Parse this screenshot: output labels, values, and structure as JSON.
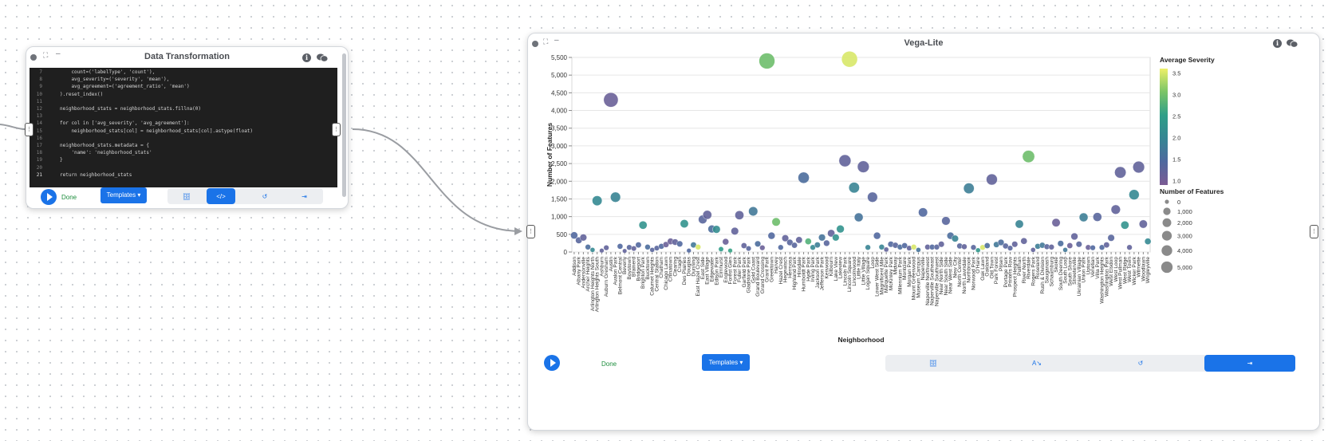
{
  "node1": {
    "title": "Data Transformation",
    "code_lines": [
      {
        "n": "7",
        "text": "    count=('labelType', 'count'),"
      },
      {
        "n": "8",
        "text": "    avg_severity=('severity', 'mean'),"
      },
      {
        "n": "9",
        "text": "    avg_agreement=('agreement_ratio', 'mean')"
      },
      {
        "n": "10",
        "text": ").reset_index()"
      },
      {
        "n": "11",
        "text": ""
      },
      {
        "n": "12",
        "text": "neighborhood_stats = neighborhood_stats.fillna(0)"
      },
      {
        "n": "13",
        "text": ""
      },
      {
        "n": "14",
        "text": "for col in ['avg_severity', 'avg_agreement']:"
      },
      {
        "n": "15",
        "text": "    neighborhood_stats[col] = neighborhood_stats[col].astype(float)"
      },
      {
        "n": "16",
        "text": ""
      },
      {
        "n": "17",
        "text": "neighborhood_stats.metadata = {"
      },
      {
        "n": "18",
        "text": "    'name': 'neighborhood_stats'"
      },
      {
        "n": "19",
        "text": "}"
      },
      {
        "n": "20",
        "text": ""
      },
      {
        "n": "21",
        "text": "return neighborhood_stats"
      }
    ],
    "done_label": "Done",
    "templates_label": "Templates ▾",
    "active_tool": "code"
  },
  "node2": {
    "title": "Vega-Lite",
    "done_label": "Done",
    "templates_label": "Templates ▾",
    "active_tool": "export"
  },
  "icons": {
    "info_glyph": "i",
    "handle_glyph": "⋮",
    "db_glyph": "🗄",
    "code_glyph": "</>",
    "ab_glyph": "A↘",
    "undo_glyph": "↺",
    "export_glyph": "⇥"
  },
  "colors": {
    "accent": "#1a73e8",
    "done": "#1e8e3e",
    "viridis_low": "#7b5b94",
    "viridis_high": "#eef069"
  },
  "chart_data": {
    "type": "scatter",
    "xlabel": "Neighborhood",
    "ylabel": "Number of Features",
    "ylim": [
      0,
      5500
    ],
    "yticks": [
      0,
      500,
      1000,
      1500,
      2000,
      2500,
      3000,
      3500,
      4000,
      4500,
      5000,
      5500
    ],
    "grid": true,
    "legend_placement": "right",
    "color_legend": {
      "title": "Average Severity",
      "ticks": [
        1.0,
        1.5,
        2.0,
        2.5,
        3.0,
        3.5
      ]
    },
    "size_legend": {
      "title": "Number of Features",
      "ticks": [
        0,
        1000,
        2000,
        3000,
        4000,
        5000
      ]
    },
    "categories": [
      "Addison",
      "Albany Park",
      "Andersonville",
      "Archer Heights",
      "Arlington Heights North",
      "Arlington Heights South",
      "Ashburn",
      "Auburn Gresham",
      "Austin",
      "Avalon Park",
      "Belmont Central",
      "Beverly",
      "Boystown",
      "Brainerd",
      "Bridgeport",
      "Brighton Park",
      "Bucktown",
      "Calumet Heights",
      "Central Station",
      "Chatham",
      "Chicago Lawn",
      "Chinatown",
      "Clearing",
      "Cragin",
      "Des Plaines",
      "Douglas",
      "Dunning",
      "East Hazel Crest",
      "East Side",
      "East Village",
      "Edgewater",
      "Edison Park",
      "Elmhurst",
      "Englewood",
      "Forest Glen",
      "Forest Park",
      "Fuller Park",
      "Garfield Park",
      "Gladstone Park",
      "Gold Coast",
      "Grand Boulevard",
      "Grand Crossing",
      "Grant Park",
      "Greektown",
      "Harvey",
      "Hazel Crest",
      "Hegewisch",
      "Hermosa",
      "Highland Park",
      "Hinsdale",
      "Humboldt Park",
      "Hyde Park",
      "Irving Park",
      "Jackson Park",
      "Jefferson Park",
      "Kenwood",
      "Kilbourn",
      "Lake View",
      "Lakeview",
      "Lincoln Park",
      "Lincoln Square",
      "Lincolnwood",
      "Little Italy",
      "Little Village",
      "Logan Square",
      "Loop",
      "Lower West Side",
      "Magnificent Mile",
      "Marquette Park",
      "McKinley Park",
      "Midway",
      "Millennium Park",
      "Montclare",
      "Morgan Park",
      "Mount Greenwood",
      "Museum Campus",
      "Naperville",
      "Naperville Northwest",
      "Naperville Southeast",
      "Naperville Southwest",
      "Near North Side",
      "Near South Side",
      "Near West Side",
      "New City",
      "North Center",
      "North Lawndale",
      "Northbrook",
      "Norwood Park",
      "O'Hare",
      "Oak Lawn",
      "Oakland",
      "Old Town",
      "Park Forest",
      "Pilsen",
      "Portage Park",
      "Printers Row",
      "Prospect Heights",
      "Pullman",
      "River North",
      "Riverdale",
      "Rogers Park",
      "Roseland",
      "Rush & Division",
      "Sauganash",
      "Schaumburg",
      "Skokie",
      "South Deering",
      "South Loop",
      "South Shore",
      "Streeterville",
      "Ukrainian Village",
      "Union Park",
      "Uptown",
      "Venetian",
      "Villa Park",
      "Washington Heights",
      "Washington Park",
      "West Elsdon",
      "West Loop",
      "West Pullman",
      "West Ridge",
      "West Town",
      "Wicker Park",
      "Wilmette",
      "Woodlawn",
      "Wrigleyville"
    ],
    "values": [
      470,
      330,
      410,
      140,
      60,
      1450,
      40,
      120,
      4300,
      1550,
      160,
      30,
      130,
      100,
      200,
      760,
      140,
      60,
      110,
      160,
      210,
      300,
      280,
      230,
      800,
      40,
      200,
      140,
      920,
      1050,
      650,
      640,
      80,
      290,
      40,
      590,
      1040,
      180,
      100,
      1150,
      230,
      120,
      5400,
      460,
      850,
      130,
      390,
      270,
      190,
      340,
      2100,
      300,
      130,
      200,
      410,
      250,
      530,
      410,
      650,
      2580,
      5450,
      1820,
      980,
      2410,
      130,
      1550,
      460,
      140,
      70,
      220,
      190,
      140,
      180,
      110,
      140,
      60,
      1120,
      140,
      140,
      140,
      220,
      880,
      460,
      380,
      170,
      150,
      1800,
      130,
      50,
      130,
      180,
      2050,
      210,
      270,
      170,
      110,
      220,
      790,
      310,
      2700,
      60,
      160,
      190,
      150,
      140,
      830,
      240,
      60,
      180,
      440,
      220,
      980,
      130,
      120,
      990,
      130,
      200,
      400,
      1200,
      2250,
      760,
      130,
      1620,
      2400,
      790,
      300
    ],
    "severity": [
      1.5,
      1.4,
      1.3,
      1.6,
      2.1,
      2.1,
      1.3,
      1.3,
      1.2,
      2.0,
      1.5,
      1.3,
      1.4,
      1.3,
      1.5,
      2.3,
      1.6,
      1.4,
      1.4,
      1.5,
      1.2,
      1.2,
      1.3,
      1.5,
      2.3,
      1.5,
      1.8,
      3.5,
      1.4,
      1.3,
      1.6,
      2.2,
      2.5,
      1.2,
      2.6,
      1.3,
      1.3,
      1.3,
      1.4,
      1.8,
      1.6,
      1.2,
      3.0,
      1.5,
      3.0,
      1.5,
      1.3,
      1.4,
      1.4,
      1.3,
      1.6,
      2.8,
      2.1,
      1.9,
      1.7,
      1.4,
      1.3,
      2.3,
      2.3,
      1.3,
      3.5,
      2.0,
      1.7,
      1.3,
      2.0,
      1.4,
      1.5,
      2.0,
      1.3,
      1.5,
      1.4,
      1.6,
      1.5,
      1.3,
      3.5,
      1.7,
      1.5,
      1.3,
      1.5,
      1.4,
      1.3,
      1.4,
      1.6,
      2.0,
      1.4,
      1.3,
      1.9,
      1.4,
      2.4,
      3.5,
      1.6,
      1.3,
      1.8,
      1.6,
      1.4,
      1.4,
      1.3,
      2.0,
      1.3,
      3.0,
      1.3,
      1.9,
      1.8,
      1.4,
      1.3,
      1.2,
      1.6,
      1.8,
      1.2,
      1.3,
      1.4,
      1.9,
      1.2,
      1.5,
      1.4,
      1.5,
      1.3,
      1.4,
      1.3,
      1.3,
      2.3,
      1.3,
      2.1,
      1.3,
      1.3,
      2.1,
      1.5
    ]
  }
}
